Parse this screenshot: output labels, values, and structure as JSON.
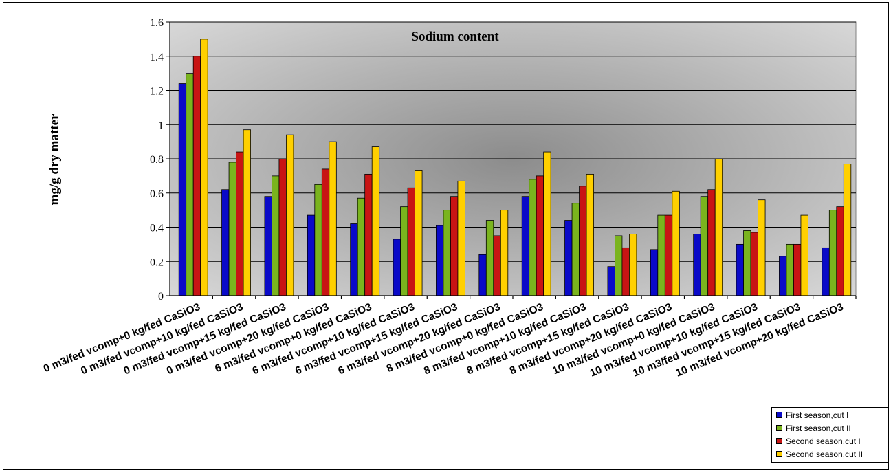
{
  "colors": {
    "series": [
      "#0a0ac8",
      "#7ab41e",
      "#c81414",
      "#ffd000"
    ],
    "plot_bg_center": "#8c8c8c",
    "plot_bg_edge": "#d7d7d7"
  },
  "chart_data": {
    "type": "bar",
    "title": "Sodium content",
    "ylabel": "mg/g dry matter",
    "xlabel": "",
    "ylim": [
      0,
      1.6
    ],
    "yticks": [
      "0",
      "0.2",
      "0.4",
      "0.6",
      "0.8",
      "1",
      "1.2",
      "1.4",
      "1.6"
    ],
    "grid": true,
    "legend_position": "bottom-right",
    "categories": [
      "0 m3/fed vcomp+0 kg/fed CaSiO3",
      "0 m3/fed vcomp+10 kg/fed CaSiO3",
      "0 m3/fed vcomp+15 kg/fed CaSiO3",
      "0 m3/fed vcomp+20 kg/fed CaSiO3",
      "6 m3/fed vcomp+0 kg/fed CaSiO3",
      "6 m3/fed vcomp+10 kg/fed CaSiO3",
      "6 m3/fed vcomp+15 kg/fed CaSiO3",
      "6 m3/fed vcomp+20 kg/fed CaSiO3",
      "8 m3/fed vcomp+0 kg/fed CaSiO3",
      "8 m3/fed vcomp+10 kg/fed CaSiO3",
      "8 m3/fed vcomp+15 kg/fed CaSiO3",
      "8 m3/fed vcomp+20 kg/fed CaSiO3",
      "10 m3/fed vcomp+0 kg/fed CaSiO3",
      "10 m3/fed vcomp+10 kg/fed CaSiO3",
      "10 m3/fed vcomp+15 kg/fed CaSiO3",
      "10 m3/fed vcomp+20 kg/fed CaSiO3"
    ],
    "series": [
      {
        "name": "First season,cut I",
        "values": [
          1.24,
          0.62,
          0.58,
          0.47,
          0.42,
          0.33,
          0.41,
          0.24,
          0.58,
          0.44,
          0.17,
          0.27,
          0.36,
          0.3,
          0.23,
          0.28
        ]
      },
      {
        "name": "First season,cut II",
        "values": [
          1.3,
          0.78,
          0.7,
          0.65,
          0.57,
          0.52,
          0.5,
          0.44,
          0.68,
          0.54,
          0.35,
          0.47,
          0.58,
          0.38,
          0.3,
          0.5
        ]
      },
      {
        "name": "Second season,cut I",
        "values": [
          1.4,
          0.84,
          0.8,
          0.74,
          0.71,
          0.63,
          0.58,
          0.35,
          0.7,
          0.64,
          0.28,
          0.47,
          0.62,
          0.37,
          0.3,
          0.52
        ]
      },
      {
        "name": "Second season,cut II",
        "values": [
          1.5,
          0.97,
          0.94,
          0.9,
          0.87,
          0.73,
          0.67,
          0.5,
          0.84,
          0.71,
          0.36,
          0.61,
          0.8,
          0.56,
          0.47,
          0.77
        ]
      }
    ]
  }
}
